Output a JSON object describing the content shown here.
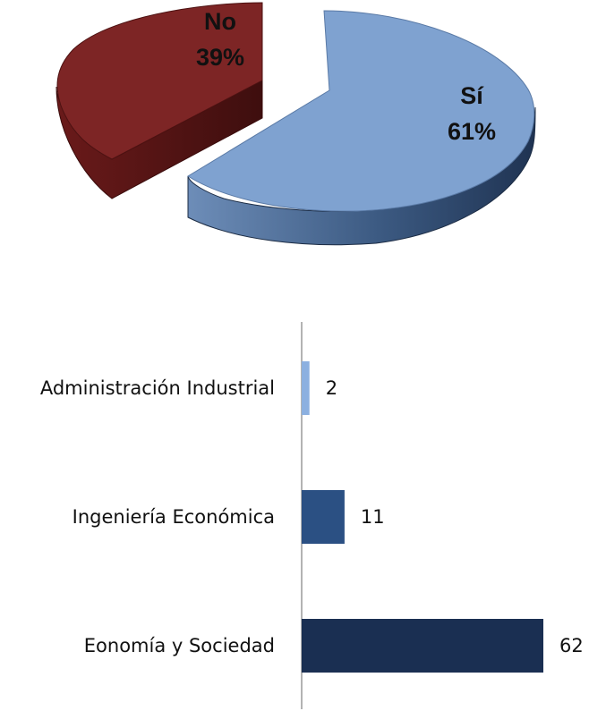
{
  "chart_data": [
    {
      "type": "pie",
      "title": "",
      "categories": [
        "Sí",
        "No"
      ],
      "values": [
        61,
        39
      ],
      "labels": [
        {
          "name": "Sí",
          "percent": "61%"
        },
        {
          "name": "No",
          "percent": "39%"
        }
      ],
      "colors": [
        "#7fa2d0",
        "#7b2424"
      ],
      "style": "3d-exploded"
    },
    {
      "type": "bar",
      "orientation": "horizontal",
      "title": "",
      "xlabel": "",
      "ylabel": "",
      "categories": [
        "Administración Industrial",
        "Ingeniería Económica",
        "Eonomía y Sociedad"
      ],
      "values": [
        2,
        11,
        62
      ],
      "value_labels": [
        "2",
        "11",
        "62"
      ],
      "colors": [
        "#8cb0e0",
        "#2b5083",
        "#1a2f52"
      ],
      "xlim": [
        0,
        62
      ],
      "grid": false,
      "legend": "none"
    }
  ]
}
